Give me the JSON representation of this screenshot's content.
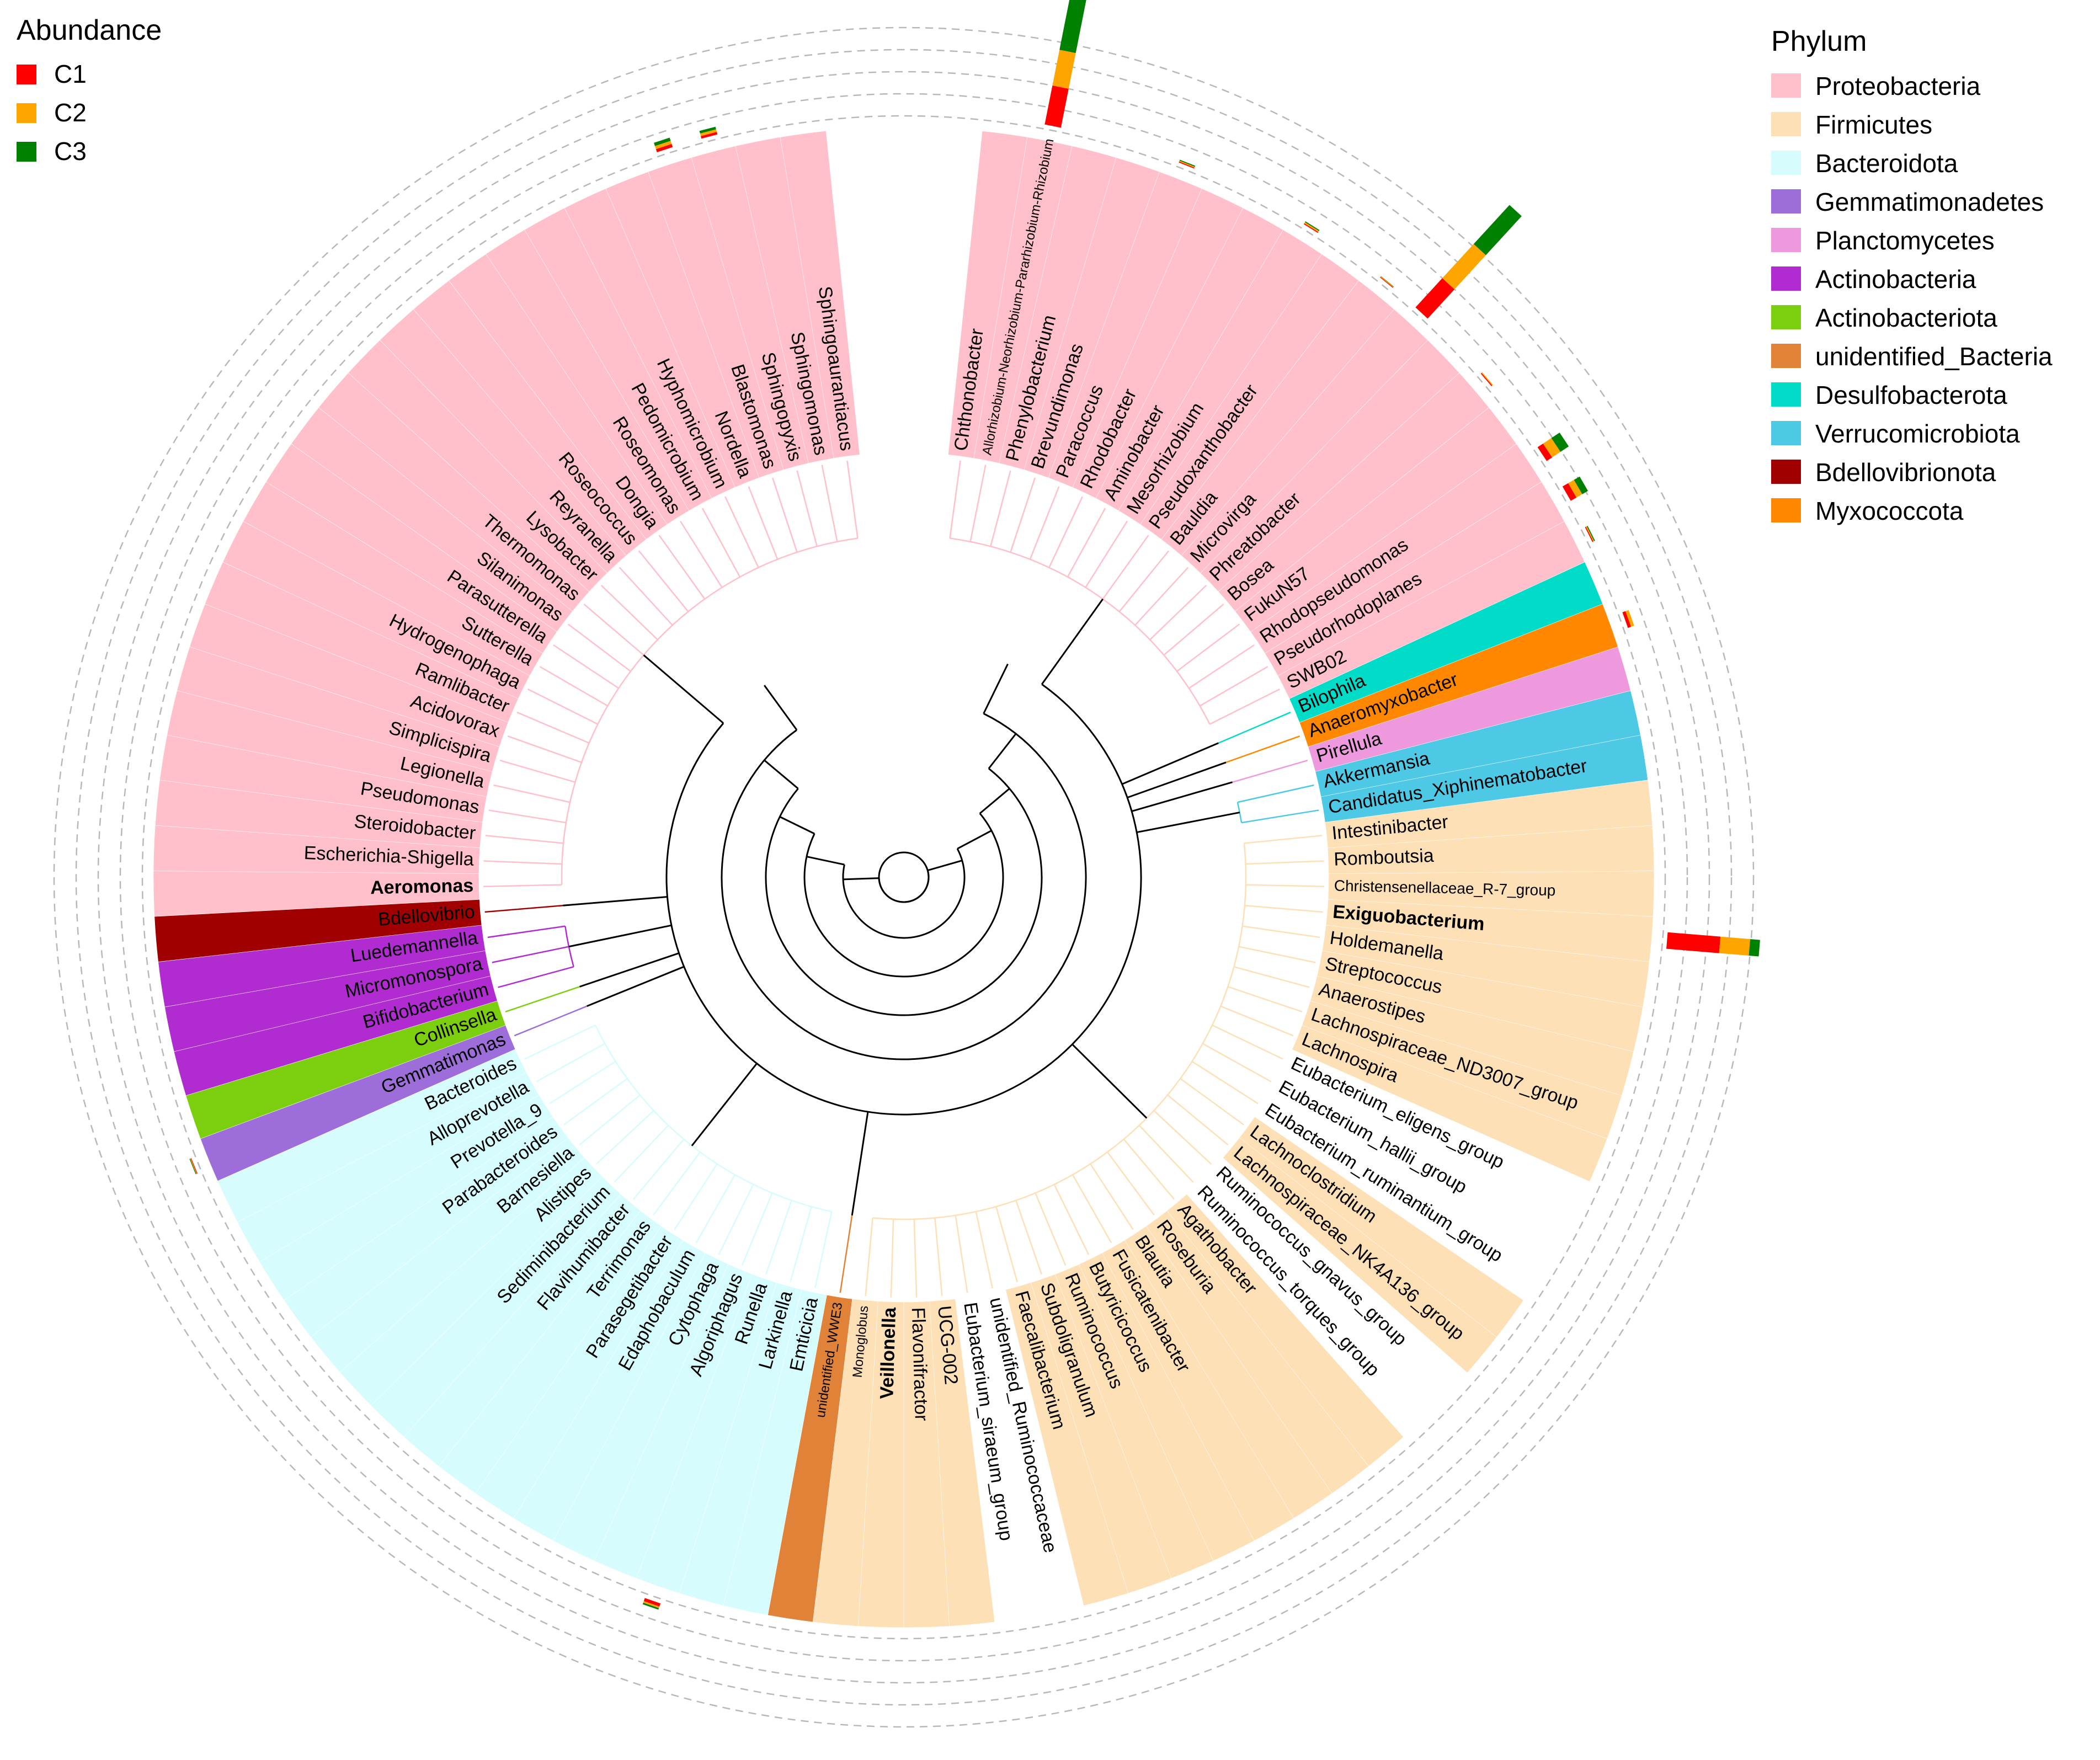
{
  "abundance_legend": {
    "title": "Abundance",
    "items": [
      {
        "label": "C1",
        "color": "#ff0000"
      },
      {
        "label": "C2",
        "color": "#ffa500"
      },
      {
        "label": "C3",
        "color": "#008000"
      }
    ]
  },
  "phylum_legend": {
    "title": "Phylum",
    "items": [
      {
        "label": "Proteobacteria",
        "color": "#ffc0cb"
      },
      {
        "label": "Firmicutes",
        "color": "#fde0b6"
      },
      {
        "label": "Bacteroidota",
        "color": "#d6fcfd"
      },
      {
        "label": "Gemmatimonadetes",
        "color": "#9d6ed9"
      },
      {
        "label": "Planctomycetes",
        "color": "#ee99dd"
      },
      {
        "label": "Actinobacteria",
        "color": "#b02cd0"
      },
      {
        "label": "Actinobacteriota",
        "color": "#7ccf0e"
      },
      {
        "label": "unidentified_Bacteria",
        "color": "#e08238"
      },
      {
        "label": "Desulfobacterota",
        "color": "#00dcc8"
      },
      {
        "label": "Verrucomicrobiota",
        "color": "#4dc9e6"
      },
      {
        "label": "Bdellovibrionota",
        "color": "#a00000"
      },
      {
        "label": "Myxococcota",
        "color": "#ff8800"
      }
    ]
  },
  "leaves": [
    {
      "name": "Chthonobacter",
      "phylum": 0,
      "ab": [
        0,
        0,
        0
      ]
    },
    {
      "name": "Allorhizobium-Neorhizobium-Pararhizobium-Rhizobium",
      "phylum": 0,
      "ab": [
        1.2,
        1.1,
        1.7
      ],
      "small": true
    },
    {
      "name": "Phenylobacterium",
      "phylum": 0,
      "ab": [
        0,
        0,
        0
      ]
    },
    {
      "name": "Brevundimonas",
      "phylum": 0,
      "ab": [
        0,
        0,
        0
      ]
    },
    {
      "name": "Paracoccus",
      "phylum": 0,
      "ab": [
        0.03,
        0.03,
        0.03
      ]
    },
    {
      "name": "Rhodobacter",
      "phylum": 0,
      "ab": [
        0,
        0,
        0
      ]
    },
    {
      "name": "Aminobacter",
      "phylum": 0,
      "ab": [
        0,
        0,
        0
      ]
    },
    {
      "name": "Mesorhizobium",
      "phylum": 0,
      "ab": [
        0.03,
        0.04,
        0.03
      ]
    },
    {
      "name": "Pseudoxanthobacter",
      "phylum": 0,
      "ab": [
        0,
        0,
        0
      ]
    },
    {
      "name": "Bauldia",
      "phylum": 0,
      "ab": [
        0.02,
        0.02,
        0.01
      ]
    },
    {
      "name": "Microvirga",
      "phylum": 0,
      "ab": [
        1.2,
        1.4,
        1.6
      ]
    },
    {
      "name": "Phreatobacter",
      "phylum": 0,
      "ab": [
        0,
        0,
        0
      ]
    },
    {
      "name": "Bosea",
      "phylum": 0,
      "ab": [
        0.03,
        0.03,
        0
      ]
    },
    {
      "name": "FukuN57",
      "phylum": 0,
      "ab": [
        0,
        0,
        0
      ]
    },
    {
      "name": "Rhodopseudomonas",
      "phylum": 0,
      "ab": [
        0.2,
        0.3,
        0.3
      ]
    },
    {
      "name": "Pseudorhodoplanes",
      "phylum": 0,
      "ab": [
        0.2,
        0.2,
        0.2
      ]
    },
    {
      "name": "SWB02",
      "phylum": 0,
      "ab": [
        0.03,
        0.03,
        0.03
      ]
    },
    {
      "name": "Bilophila",
      "phylum": 8,
      "ab": [
        0,
        0,
        0
      ]
    },
    {
      "name": "Anaeromyxobacter",
      "phylum": 11,
      "ab": [
        0.1,
        0.1,
        0
      ]
    },
    {
      "name": "Pirellula",
      "phylum": 4,
      "ab": [
        0,
        0,
        0
      ]
    },
    {
      "name": "Akkermansia",
      "phylum": 9,
      "ab": [
        0,
        0,
        0
      ]
    },
    {
      "name": "Candidatus_Xiphinematobacter",
      "phylum": 9,
      "ab": [
        0,
        0,
        0
      ]
    },
    {
      "name": "Intestinibacter",
      "phylum": 1,
      "ab": [
        0,
        0,
        0
      ]
    },
    {
      "name": "Romboutsia",
      "phylum": 1,
      "ab": [
        0,
        0,
        0
      ]
    },
    {
      "name": "Christensenellaceae_R-7_group",
      "phylum": 1,
      "ab": [
        0,
        0,
        0
      ],
      "smaller": true
    },
    {
      "name": "Exiguobacterium",
      "phylum": 1,
      "ab": [
        1.6,
        0.9,
        0.3
      ],
      "bold": true
    },
    {
      "name": "Holdemanella",
      "phylum": 1,
      "ab": [
        0,
        0,
        0
      ]
    },
    {
      "name": "Streptococcus",
      "phylum": 1,
      "ab": [
        0,
        0,
        0
      ]
    },
    {
      "name": "Anaerostipes",
      "phylum": 1,
      "ab": [
        0,
        0,
        0
      ]
    },
    {
      "name": "Lachnospiraceae_ND3007_group",
      "phylum": 1,
      "ab": [
        0,
        0,
        0
      ]
    },
    {
      "name": "Lachnospira",
      "phylum": 1,
      "ab": [
        0,
        0,
        0
      ]
    },
    {
      "name": "Eubacterium_eligens_group",
      "phylum": 1,
      "ab": [
        0,
        0,
        0
      ],
      "bar": false
    },
    {
      "name": "Eubacterium_hallii_group",
      "phylum": 1,
      "ab": [
        0,
        0,
        0
      ],
      "bar": false
    },
    {
      "name": "Eubacterium_ruminantium_group",
      "phylum": 1,
      "ab": [
        0,
        0,
        0
      ],
      "bar": false
    },
    {
      "name": "Lachnoclostridium",
      "phylum": 1,
      "ab": [
        0,
        0,
        0
      ]
    },
    {
      "name": "Lachnospiraceae_NK4A136_group",
      "phylum": 1,
      "ab": [
        0,
        0,
        0
      ]
    },
    {
      "name": "Ruminococcus_gnavus_group",
      "phylum": 1,
      "ab": [
        0,
        0,
        0
      ],
      "bar": false
    },
    {
      "name": "Ruminococcus_torques_group",
      "phylum": 1,
      "ab": [
        0,
        0,
        0
      ],
      "bar": false
    },
    {
      "name": "Agathobacter",
      "phylum": 1,
      "ab": [
        0,
        0,
        0
      ]
    },
    {
      "name": "Roseburia",
      "phylum": 1,
      "ab": [
        0,
        0,
        0
      ]
    },
    {
      "name": "Blautia",
      "phylum": 1,
      "ab": [
        0,
        0,
        0
      ]
    },
    {
      "name": "Fusicatenibacter",
      "phylum": 1,
      "ab": [
        0,
        0,
        0
      ]
    },
    {
      "name": "Butyricicoccus",
      "phylum": 1,
      "ab": [
        0,
        0,
        0
      ]
    },
    {
      "name": "Ruminococcus",
      "phylum": 1,
      "ab": [
        0,
        0,
        0
      ]
    },
    {
      "name": "Subdoligranulum",
      "phylum": 1,
      "ab": [
        0,
        0,
        0
      ]
    },
    {
      "name": "Faecalibacterium",
      "phylum": 1,
      "ab": [
        0,
        0,
        0
      ]
    },
    {
      "name": "unidentified_Ruminococcaceae",
      "phylum": 1,
      "ab": [
        0,
        0,
        0
      ],
      "bar": false
    },
    {
      "name": "Eubacterium_siraeum_group",
      "phylum": 1,
      "ab": [
        0,
        0,
        0
      ],
      "bar": false
    },
    {
      "name": "UCG-002",
      "phylum": 1,
      "ab": [
        0,
        0,
        0
      ]
    },
    {
      "name": "Flavonifractor",
      "phylum": 1,
      "ab": [
        0,
        0,
        0
      ]
    },
    {
      "name": "Veillonella",
      "phylum": 1,
      "ab": [
        0,
        0,
        0
      ],
      "bold": true
    },
    {
      "name": "Monoglobus",
      "phylum": 1,
      "ab": [
        0,
        0,
        0
      ],
      "small": true
    },
    {
      "name": "unidentified_WWE3",
      "phylum": 7,
      "ab": [
        0,
        0,
        0
      ],
      "small": true
    },
    {
      "name": "Emticicia",
      "phylum": 2,
      "ab": [
        0,
        0,
        0
      ]
    },
    {
      "name": "Larkinella",
      "phylum": 2,
      "ab": [
        0,
        0,
        0
      ]
    },
    {
      "name": "Runella",
      "phylum": 2,
      "ab": [
        0.1,
        0.05,
        0.05
      ]
    },
    {
      "name": "Algoriphagus",
      "phylum": 2,
      "ab": [
        0,
        0,
        0
      ]
    },
    {
      "name": "Cytophaga",
      "phylum": 2,
      "ab": [
        0,
        0,
        0
      ]
    },
    {
      "name": "Edaphobaculum",
      "phylum": 2,
      "ab": [
        0,
        0,
        0
      ]
    },
    {
      "name": "Parasegetibacter",
      "phylum": 2,
      "ab": [
        0,
        0,
        0
      ]
    },
    {
      "name": "Terrimonas",
      "phylum": 2,
      "ab": [
        0,
        0,
        0
      ]
    },
    {
      "name": "Flavihumibacter",
      "phylum": 2,
      "ab": [
        0,
        0,
        0
      ]
    },
    {
      "name": "Sediminibacterium",
      "phylum": 2,
      "ab": [
        0,
        0,
        0
      ]
    },
    {
      "name": "Alistipes",
      "phylum": 2,
      "ab": [
        0,
        0,
        0
      ]
    },
    {
      "name": "Barnesiella",
      "phylum": 2,
      "ab": [
        0,
        0,
        0
      ]
    },
    {
      "name": "Parabacteroides",
      "phylum": 2,
      "ab": [
        0,
        0,
        0
      ]
    },
    {
      "name": "Prevotella_9",
      "phylum": 2,
      "ab": [
        0,
        0,
        0
      ]
    },
    {
      "name": "Alloprevotella",
      "phylum": 2,
      "ab": [
        0,
        0,
        0
      ]
    },
    {
      "name": "Bacteroides",
      "phylum": 2,
      "ab": [
        0,
        0,
        0
      ]
    },
    {
      "name": "Gemmatimonas",
      "phylum": 3,
      "ab": [
        0.02,
        0.02,
        0.02
      ]
    },
    {
      "name": "Collinsella",
      "phylum": 6,
      "ab": [
        0,
        0,
        0
      ]
    },
    {
      "name": "Bifidobacterium",
      "phylum": 5,
      "ab": [
        0,
        0,
        0
      ]
    },
    {
      "name": "Micromonospora",
      "phylum": 5,
      "ab": [
        0,
        0,
        0
      ]
    },
    {
      "name": "Luedemannella",
      "phylum": 5,
      "ab": [
        0,
        0,
        0
      ]
    },
    {
      "name": "Bdellovibrio",
      "phylum": 10,
      "ab": [
        0,
        0,
        0
      ]
    },
    {
      "name": "Aeromonas",
      "phylum": 0,
      "ab": [
        0,
        0,
        0
      ],
      "bold": true
    },
    {
      "name": "Escherichia-Shigella",
      "phylum": 0,
      "ab": [
        0,
        0,
        0
      ]
    },
    {
      "name": "Steroidobacter",
      "phylum": 0,
      "ab": [
        0,
        0,
        0
      ]
    },
    {
      "name": "Pseudomonas",
      "phylum": 0,
      "ab": [
        0,
        0,
        0
      ]
    },
    {
      "name": "Legionella",
      "phylum": 0,
      "ab": [
        0,
        0,
        0
      ]
    },
    {
      "name": "Simplicispira",
      "phylum": 0,
      "ab": [
        0,
        0,
        0
      ]
    },
    {
      "name": "Acidovorax",
      "phylum": 0,
      "ab": [
        0,
        0,
        0
      ]
    },
    {
      "name": "Ramlibacter",
      "phylum": 0,
      "ab": [
        0,
        0,
        0
      ]
    },
    {
      "name": "Hydrogenophaga",
      "phylum": 0,
      "ab": [
        0,
        0,
        0
      ]
    },
    {
      "name": "Sutterella",
      "phylum": 0,
      "ab": [
        0,
        0,
        0
      ]
    },
    {
      "name": "Parasutterella",
      "phylum": 0,
      "ab": [
        0,
        0,
        0
      ]
    },
    {
      "name": "Silanimonas",
      "phylum": 0,
      "ab": [
        0,
        0,
        0
      ]
    },
    {
      "name": "Thermomonas",
      "phylum": 0,
      "ab": [
        0,
        0,
        0
      ]
    },
    {
      "name": "Lysobacter",
      "phylum": 0,
      "ab": [
        0,
        0,
        0
      ]
    },
    {
      "name": "Reyranella",
      "phylum": 0,
      "ab": [
        0,
        0,
        0
      ]
    },
    {
      "name": "Roseococcus",
      "phylum": 0,
      "ab": [
        0,
        0,
        0
      ]
    },
    {
      "name": "Dongia",
      "phylum": 0,
      "ab": [
        0,
        0,
        0
      ]
    },
    {
      "name": "Roseomonas",
      "phylum": 0,
      "ab": [
        0,
        0,
        0
      ]
    },
    {
      "name": "Pedomicrobium",
      "phylum": 0,
      "ab": [
        0,
        0,
        0
      ]
    },
    {
      "name": "Hyphomicrobium",
      "phylum": 0,
      "ab": [
        0,
        0,
        0
      ]
    },
    {
      "name": "Nordella",
      "phylum": 0,
      "ab": [
        0,
        0,
        0
      ]
    },
    {
      "name": "Blastomonas",
      "phylum": 0,
      "ab": [
        0.1,
        0.1,
        0.1
      ]
    },
    {
      "name": "Sphingopyxis",
      "phylum": 0,
      "ab": [
        0.08,
        0.08,
        0.08
      ]
    },
    {
      "name": "Sphingomonas",
      "phylum": 0,
      "ab": [
        0,
        0,
        0
      ]
    },
    {
      "name": "Sphingoaurantiacus",
      "phylum": 0,
      "ab": [
        0,
        0,
        0
      ]
    }
  ]
}
